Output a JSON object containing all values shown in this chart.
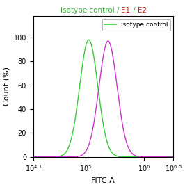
{
  "title_parts": [
    {
      "text": "isotype control / ",
      "color": "#33aa33"
    },
    {
      "text": "E1",
      "color": "#cc2200"
    },
    {
      "text": " / ",
      "color": "#33aa33"
    },
    {
      "text": "E2",
      "color": "#cc2200"
    }
  ],
  "xlabel": "FITC-A",
  "ylabel": "Count (%)",
  "ylim": [
    0,
    118
  ],
  "yticks": [
    0,
    20,
    40,
    60,
    80,
    100
  ],
  "xlog_min": 4.1,
  "xlog_max": 6.5,
  "green_peak_log": 5.05,
  "green_sigma_log": 0.155,
  "green_peak_val": 98,
  "magenta_peak_log": 5.38,
  "magenta_sigma_log": 0.155,
  "magenta_peak_val": 97,
  "green_color": "#33cc33",
  "magenta_color": "#cc33cc",
  "legend_label": "isotype control",
  "legend_color": "#33cc33",
  "background": "#ffffff",
  "line_width": 1.0,
  "title_fontsize": 7.5,
  "tick_fontsize": 7,
  "label_fontsize": 8
}
